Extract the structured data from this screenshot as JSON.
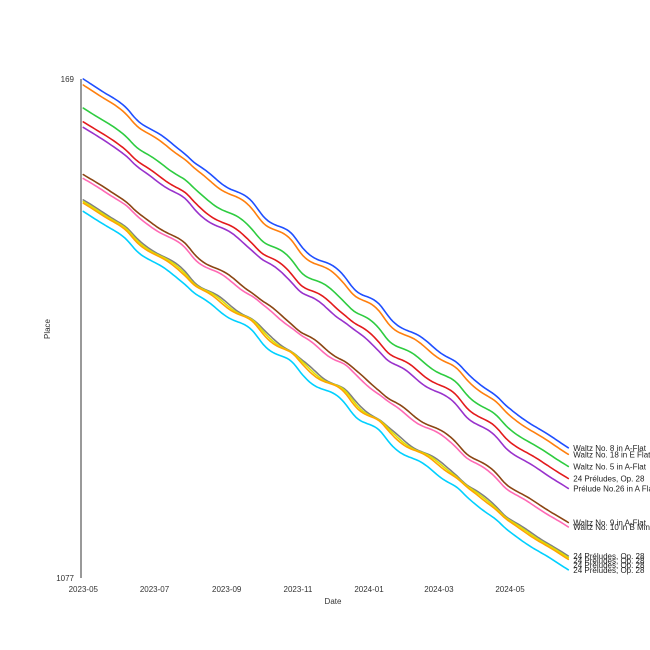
{
  "chart_data": {
    "type": "line",
    "title": "",
    "xlabel": "Date",
    "ylabel": "Place",
    "y_inverted": true,
    "ylim": [
      169,
      1077
    ],
    "y_ticks": [
      "169",
      "1077"
    ],
    "xlim": [
      "2023-04-29",
      "2024-06-30"
    ],
    "x_ticks": [
      "2023-05",
      "2023-07",
      "2023-09",
      "2023-11",
      "2024-01",
      "2024-03",
      "2024-05"
    ],
    "grid": false,
    "legend": "labels at line ends (right)",
    "date_range": [
      "2023-05-01",
      "2024-06-20"
    ],
    "series": [
      {
        "name": "Waltz No. 8 in A-Flat",
        "color": "#1f4fff",
        "start": 169,
        "end": 840
      },
      {
        "name": "Waltz No. 18 in E Flat",
        "color": "#ff7f0e",
        "start": 180,
        "end": 852
      },
      {
        "name": "Waltz No. 5 in A-Flat",
        "color": "#2ecc40",
        "start": 222,
        "end": 874
      },
      {
        "name": "24 Préludes, Op. 28",
        "color": "#e31a1c",
        "start": 247,
        "end": 896
      },
      {
        "name": "Prélude No.26 in A Flat",
        "color": "#9932cc",
        "start": 257,
        "end": 914
      },
      {
        "name": "Waltz No. 9 in A-Flat",
        "color": "#8b4513",
        "start": 343,
        "end": 976
      },
      {
        "name": "Waltz No. 10 in B Minor",
        "color": "#ff69b4",
        "start": 350,
        "end": 984
      },
      {
        "name": "24 Préludes, Op. 28",
        "color": "#808080",
        "start": 389,
        "end": 1037
      },
      {
        "name": "24 Préludes, Op. 28",
        "color": "#e0e000",
        "start": 392,
        "end": 1040
      },
      {
        "name": "24 Préludes, Op. 28",
        "color": "#ffa500",
        "start": 395,
        "end": 1043
      },
      {
        "name": "24 Préludes, Op. 28",
        "color": "#00d0ff",
        "start": 410,
        "end": 1062
      }
    ]
  }
}
